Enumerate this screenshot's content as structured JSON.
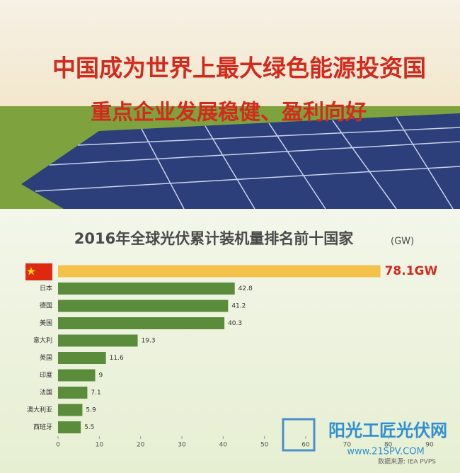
{
  "banner": {
    "title": "中国成为世界上最大绿色能源投资国",
    "subtitle": "重点企业发展稳健、盈利向好"
  },
  "chart_data": {
    "type": "bar",
    "orientation": "horizontal",
    "title": "2016年全球光伏累计装机量排名前十国家",
    "unit": "(GW)",
    "categories": [
      null,
      "日本",
      "德国",
      "美国",
      "意大利",
      "英国",
      "印度",
      "法国",
      "澳大利亚",
      "西班牙"
    ],
    "values": [
      78.1,
      42.8,
      41.2,
      40.3,
      19.3,
      11.6,
      9,
      7.1,
      5.9,
      5.5
    ],
    "value_labels": [
      "78.1GW",
      "42.8",
      "41.2",
      "40.3",
      "19.3",
      "11.6",
      "9",
      "7.1",
      "5.9",
      "5.5"
    ],
    "colors": [
      "#f4c24a",
      "#5b8c3b",
      "#5b8c3b",
      "#5b8c3b",
      "#5b8c3b",
      "#5b8c3b",
      "#5b8c3b",
      "#5b8c3b",
      "#5b8c3b",
      "#5b8c3b"
    ],
    "xlim": [
      0,
      90
    ],
    "xticks": [
      0,
      10,
      20,
      30,
      40,
      50,
      60,
      70,
      80,
      90
    ],
    "source": "数据来源: IEA PVPS"
  },
  "watermark": {
    "name": "阳光工匠光伏网",
    "url": "www.21SPV.COM"
  }
}
